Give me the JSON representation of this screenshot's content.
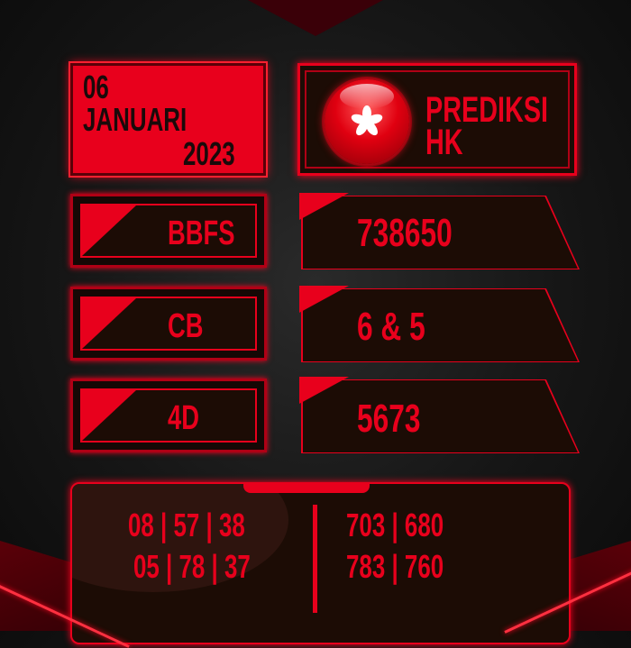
{
  "date": {
    "day": "06",
    "month": "JANUARI",
    "year": "2023"
  },
  "header": {
    "title_line1": "PREDIKSI",
    "title_line2": "HK",
    "logo_icon": "hong-kong-bauhinia-flower-icon"
  },
  "rows": [
    {
      "label": "BBFS",
      "value": "738650"
    },
    {
      "label": "CB",
      "value": "6 & 5"
    },
    {
      "label": "4D",
      "value": "5673"
    }
  ],
  "bottom": {
    "left_lines": [
      "08 | 57 | 38",
      "05 | 78 | 37"
    ],
    "right_lines": [
      "703 | 680",
      "783 | 760"
    ]
  },
  "colors": {
    "accent": "#e8001c",
    "panel": "#1c0c05",
    "background": "#161616"
  }
}
